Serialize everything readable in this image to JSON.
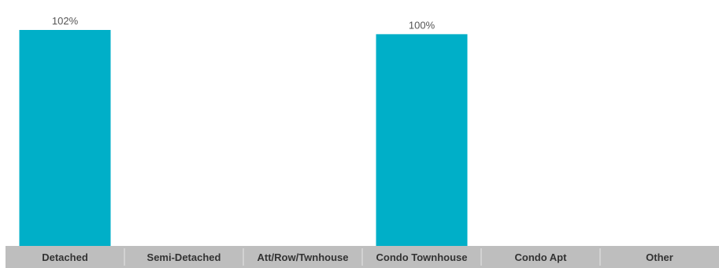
{
  "chart_data": {
    "type": "bar",
    "categories": [
      "Detached",
      "Semi-Detached",
      "Att/Row/Twnhouse",
      "Condo Townhouse",
      "Condo Apt",
      "Other"
    ],
    "values": [
      102,
      null,
      null,
      100,
      null,
      null
    ],
    "value_labels": [
      "102%",
      "",
      "",
      "100%",
      "",
      ""
    ],
    "title": "",
    "xlabel": "",
    "ylabel": "",
    "ylim": [
      0,
      102
    ],
    "grid": false,
    "legend": "none",
    "bar_color": "#00AFC8",
    "axis_band_color": "#BEBEBE",
    "axis_separator_color": "#E6E6E6"
  }
}
